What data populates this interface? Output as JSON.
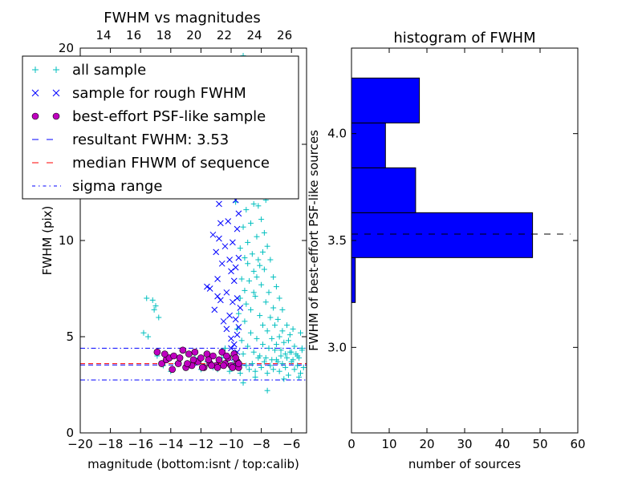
{
  "colors": {
    "all_sample": "#00bfbf",
    "rough": "#0000ff",
    "best": "#bf00bf",
    "resultant_line": "#0000ff",
    "median_line": "#ff0000",
    "sigma_line": "#0000ff",
    "hist_bar": "#0000ff",
    "hist_line": "#000000"
  },
  "chart_data": [
    {
      "type": "scatter",
      "title": "FWHM vs magnitudes",
      "xlabel": "magnitude (bottom:isnt / top:calib)",
      "ylabel": "FWHM (pix)",
      "xlim": [
        -20,
        -5
      ],
      "ylim": [
        0,
        20
      ],
      "x_ticks": [
        "−20",
        "−18",
        "−16",
        "−14",
        "−12",
        "−10",
        "−8",
        "−6"
      ],
      "y_ticks": [
        "0",
        "5",
        "10",
        "15",
        "20"
      ],
      "top_ticks": [
        "14",
        "16",
        "18",
        "20",
        "22",
        "24",
        "26"
      ],
      "legend": {
        "position": "upper-left",
        "entries": [
          {
            "label": "all sample",
            "marker": "+",
            "color": "#00bfbf"
          },
          {
            "label": "sample for rough FWHM",
            "marker": "x",
            "color": "#0000ff"
          },
          {
            "label": "best-effort PSF-like sample",
            "marker": "o",
            "color": "#bf00bf"
          },
          {
            "label": "resultant FWHM: 3.53",
            "marker": "dashed",
            "color": "#0000ff"
          },
          {
            "label": "median FHWM of sequence",
            "marker": "dashed",
            "color": "#ff0000"
          },
          {
            "label": "sigma range",
            "marker": "dashdot",
            "color": "#0000ff"
          }
        ]
      },
      "hlines": [
        {
          "name": "resultant FWHM",
          "y": 3.53,
          "style": "dashed",
          "color": "#0000ff"
        },
        {
          "name": "median FHWM of sequence",
          "y": 3.6,
          "style": "dashed",
          "color": "#ff0000"
        },
        {
          "name": "sigma upper",
          "y": 4.4,
          "style": "dashdot",
          "color": "#0000ff"
        },
        {
          "name": "sigma lower",
          "y": 2.75,
          "style": "dashdot",
          "color": "#0000ff"
        }
      ],
      "series": [
        {
          "name": "all sample",
          "marker": "+",
          "points": [
            [
              -15.6,
              7.0
            ],
            [
              -15.2,
              6.9
            ],
            [
              -15.1,
              6.4
            ],
            [
              -15.0,
              6.6
            ],
            [
              -14.8,
              6.0
            ],
            [
              -15.8,
              5.2
            ],
            [
              -15.5,
              5.0
            ],
            [
              -14.9,
              4.0
            ],
            [
              -14.5,
              3.5
            ],
            [
              -14.0,
              3.2
            ],
            [
              -13.6,
              3.6
            ],
            [
              -13.0,
              3.5
            ],
            [
              -12.4,
              3.9
            ],
            [
              -12.0,
              3.3
            ],
            [
              -11.6,
              3.7
            ],
            [
              -11.2,
              3.4
            ],
            [
              -10.9,
              3.3
            ],
            [
              -10.6,
              3.9
            ],
            [
              -10.4,
              4.4
            ],
            [
              -10.1,
              3.2
            ],
            [
              -9.9,
              3.6
            ],
            [
              -9.6,
              3.8
            ],
            [
              -9.4,
              3.1
            ],
            [
              -9.2,
              4.1
            ],
            [
              -9.0,
              3.5
            ],
            [
              -8.8,
              3.3
            ],
            [
              -8.6,
              3.6
            ],
            [
              -8.4,
              3.2
            ],
            [
              -8.2,
              3.9
            ],
            [
              -8.0,
              3.4
            ],
            [
              -7.8,
              3.7
            ],
            [
              -7.6,
              3.1
            ],
            [
              -7.4,
              3.5
            ],
            [
              -7.2,
              3.3
            ],
            [
              -7.0,
              3.8
            ],
            [
              -6.8,
              3.2
            ],
            [
              -6.6,
              3.6
            ],
            [
              -6.4,
              3.4
            ],
            [
              -6.2,
              3.0
            ],
            [
              -6.0,
              3.7
            ],
            [
              -5.8,
              3.3
            ],
            [
              -5.6,
              3.5
            ],
            [
              -5.4,
              3.1
            ],
            [
              -5.2,
              3.4
            ],
            [
              -7.6,
              2.2
            ],
            [
              -6.5,
              2.8
            ],
            [
              -5.5,
              2.9
            ],
            [
              -8.4,
              2.9
            ],
            [
              -9.2,
              2.6
            ],
            [
              -9.3,
              8.0
            ],
            [
              -9.1,
              7.4
            ],
            [
              -9.0,
              6.7
            ],
            [
              -8.9,
              8.8
            ],
            [
              -8.8,
              7.9
            ],
            [
              -8.7,
              6.4
            ],
            [
              -8.6,
              9.3
            ],
            [
              -8.5,
              8.4
            ],
            [
              -8.4,
              7.1
            ],
            [
              -8.3,
              10.2
            ],
            [
              -8.2,
              9.0
            ],
            [
              -8.1,
              6.1
            ],
            [
              -8.0,
              7.7
            ],
            [
              -7.9,
              5.6
            ],
            [
              -7.8,
              8.5
            ],
            [
              -7.7,
              6.8
            ],
            [
              -7.6,
              5.3
            ],
            [
              -7.5,
              7.3
            ],
            [
              -7.4,
              6.0
            ],
            [
              -7.3,
              4.9
            ],
            [
              -7.2,
              6.5
            ],
            [
              -7.1,
              5.6
            ],
            [
              -7.0,
              4.6
            ],
            [
              -6.9,
              5.9
            ],
            [
              -6.8,
              5.0
            ],
            [
              -6.7,
              4.3
            ],
            [
              -6.6,
              5.3
            ],
            [
              -6.5,
              4.7
            ],
            [
              -6.4,
              4.1
            ],
            [
              -6.2,
              4.8
            ],
            [
              -6.0,
              4.2
            ],
            [
              -5.8,
              4.5
            ],
            [
              -5.6,
              4.0
            ],
            [
              -5.4,
              5.2
            ],
            [
              -5.3,
              4.3
            ],
            [
              -9.4,
              9.6
            ],
            [
              -9.2,
              10.7
            ],
            [
              -9.0,
              11.6
            ],
            [
              -8.9,
              12.3
            ],
            [
              -8.8,
              13.5
            ],
            [
              -8.7,
              14.1
            ],
            [
              -8.6,
              15.0
            ],
            [
              -8.5,
              11.9
            ],
            [
              -8.4,
              13.2
            ],
            [
              -8.6,
              16.1
            ],
            [
              -8.8,
              17.0
            ],
            [
              -8.9,
              15.6
            ],
            [
              -8.2,
              12.6
            ],
            [
              -8.0,
              11.1
            ],
            [
              -7.8,
              10.4
            ],
            [
              -7.6,
              9.7
            ],
            [
              -7.4,
              9.0
            ],
            [
              -7.2,
              8.1
            ],
            [
              -7.0,
              7.6
            ],
            [
              -6.8,
              7.0
            ],
            [
              -6.6,
              6.4
            ],
            [
              -9.6,
              18.9
            ],
            [
              -9.2,
              19.6
            ],
            [
              -9.5,
              16.4
            ],
            [
              -9.3,
              14.2
            ],
            [
              -9.7,
              12.0
            ],
            [
              -8.2,
              11.8
            ],
            [
              -8.0,
              13.6
            ],
            [
              -7.7,
              12.1
            ],
            [
              -9.1,
              9.1
            ],
            [
              -9.4,
              7.0
            ],
            [
              -9.5,
              6.2
            ],
            [
              -9.6,
              5.4
            ],
            [
              -9.3,
              4.8
            ],
            [
              -9.1,
              5.8
            ],
            [
              -8.9,
              4.5
            ],
            [
              -8.7,
              5.2
            ],
            [
              -8.5,
              4.2
            ],
            [
              -8.3,
              4.9
            ],
            [
              -8.1,
              4.0
            ],
            [
              -7.9,
              4.6
            ],
            [
              -7.7,
              3.9
            ],
            [
              -7.5,
              4.4
            ],
            [
              -7.3,
              3.8
            ],
            [
              -7.1,
              4.3
            ],
            [
              -6.9,
              3.7
            ],
            [
              -6.7,
              4.0
            ],
            [
              -6.3,
              3.9
            ],
            [
              -6.1,
              4.2
            ],
            [
              -5.9,
              3.8
            ],
            [
              -5.7,
              4.1
            ],
            [
              -5.5,
              3.9
            ],
            [
              -5.3,
              4.4
            ],
            [
              -6.3,
              5.6
            ],
            [
              -6.1,
              5.1
            ],
            [
              -5.9,
              5.4
            ],
            [
              -7.9,
              9.4
            ],
            [
              -8.1,
              8.7
            ],
            [
              -8.3,
              8.1
            ],
            [
              -8.5,
              7.3
            ],
            [
              -8.7,
              10.9
            ],
            [
              -8.9,
              9.9
            ],
            [
              -9.1,
              12.8
            ]
          ]
        },
        {
          "name": "sample for rough FWHM",
          "marker": "x",
          "points": [
            [
              -11.6,
              7.6
            ],
            [
              -11.4,
              7.5
            ],
            [
              -11.0,
              9.4
            ],
            [
              -10.8,
              10.1
            ],
            [
              -10.6,
              8.8
            ],
            [
              -10.4,
              9.7
            ],
            [
              -10.2,
              11.0
            ],
            [
              -10.0,
              8.4
            ],
            [
              -9.8,
              7.9
            ],
            [
              -9.6,
              10.6
            ],
            [
              -9.5,
              9.1
            ],
            [
              -9.9,
              6.8
            ],
            [
              -10.1,
              6.1
            ],
            [
              -10.3,
              5.4
            ],
            [
              -9.7,
              5.9
            ],
            [
              -9.4,
              6.5
            ],
            [
              -9.6,
              5.1
            ],
            [
              -9.8,
              4.6
            ],
            [
              -10.0,
              4.9
            ],
            [
              -10.5,
              5.8
            ],
            [
              -10.7,
              6.9
            ],
            [
              -10.9,
              7.1
            ],
            [
              -11.1,
              6.4
            ],
            [
              -10.2,
              13.0
            ],
            [
              -10.5,
              14.6
            ],
            [
              -10.8,
              11.9
            ],
            [
              -11.2,
              10.3
            ],
            [
              -10.1,
              15.4
            ],
            [
              -10.4,
              16.8
            ],
            [
              -10.6,
              12.7
            ],
            [
              -9.7,
              12.1
            ],
            [
              -9.5,
              14.0
            ],
            [
              -9.6,
              16.0
            ],
            [
              -11.9,
              15.3
            ],
            [
              -10.9,
              8.0
            ],
            [
              -10.3,
              7.3
            ],
            [
              -9.9,
              9.9
            ],
            [
              -9.5,
              11.4
            ],
            [
              -9.7,
              8.6
            ],
            [
              -10.1,
              9.0
            ],
            [
              -10.7,
              10.9
            ],
            [
              -9.6,
              7.0
            ],
            [
              -9.5,
              5.5
            ],
            [
              -9.6,
              4.2
            ],
            [
              -9.8,
              3.9
            ],
            [
              -10.0,
              4.4
            ]
          ]
        },
        {
          "name": "best-effort PSF-like sample",
          "marker": "o",
          "points": [
            [
              -14.9,
              4.2
            ],
            [
              -14.6,
              3.6
            ],
            [
              -14.3,
              3.8
            ],
            [
              -14.1,
              3.9
            ],
            [
              -13.8,
              4.0
            ],
            [
              -13.5,
              3.6
            ],
            [
              -13.2,
              4.3
            ],
            [
              -13.0,
              3.4
            ],
            [
              -12.8,
              4.1
            ],
            [
              -12.6,
              3.5
            ],
            [
              -12.4,
              4.2
            ],
            [
              -12.2,
              3.7
            ],
            [
              -12.0,
              3.9
            ],
            [
              -11.8,
              3.4
            ],
            [
              -11.6,
              4.1
            ],
            [
              -11.4,
              3.6
            ],
            [
              -11.2,
              4.0
            ],
            [
              -11.0,
              3.5
            ],
            [
              -10.8,
              3.8
            ],
            [
              -10.6,
              4.2
            ],
            [
              -10.4,
              3.6
            ],
            [
              -10.2,
              3.9
            ],
            [
              -10.0,
              3.5
            ],
            [
              -9.8,
              4.1
            ],
            [
              -9.6,
              3.7
            ],
            [
              -9.5,
              3.4
            ],
            [
              -13.9,
              3.3
            ],
            [
              -12.9,
              3.6
            ],
            [
              -11.9,
              3.4
            ],
            [
              -10.9,
              3.4
            ],
            [
              -9.9,
              3.4
            ],
            [
              -11.5,
              3.8
            ],
            [
              -10.5,
              3.5
            ],
            [
              -9.7,
              3.9
            ],
            [
              -12.5,
              3.8
            ],
            [
              -13.4,
              3.9
            ],
            [
              -14.4,
              4.1
            ],
            [
              -11.3,
              3.5
            ],
            [
              -10.3,
              4.0
            ],
            [
              -9.5,
              3.6
            ]
          ]
        }
      ]
    },
    {
      "type": "bar",
      "orientation": "horizontal",
      "title": "histogram of FWHM",
      "xlabel": "number of sources",
      "ylabel": "FWHM of best-effort PSF-like sources",
      "xlim": [
        0,
        60
      ],
      "ylim": [
        2.6,
        4.4
      ],
      "x_ticks": [
        "0",
        "10",
        "20",
        "30",
        "40",
        "50",
        "60"
      ],
      "y_ticks": [
        "3.0",
        "3.5",
        "4.0"
      ],
      "bins": [
        {
          "low": 3.21,
          "high": 3.42,
          "count": 1
        },
        {
          "low": 3.42,
          "high": 3.63,
          "count": 48
        },
        {
          "low": 3.63,
          "high": 3.84,
          "count": 17
        },
        {
          "low": 3.84,
          "high": 4.05,
          "count": 9
        },
        {
          "low": 4.05,
          "high": 4.26,
          "count": 18
        }
      ],
      "hline": {
        "y": 3.53,
        "style": "dashed",
        "color": "#000000"
      }
    }
  ]
}
